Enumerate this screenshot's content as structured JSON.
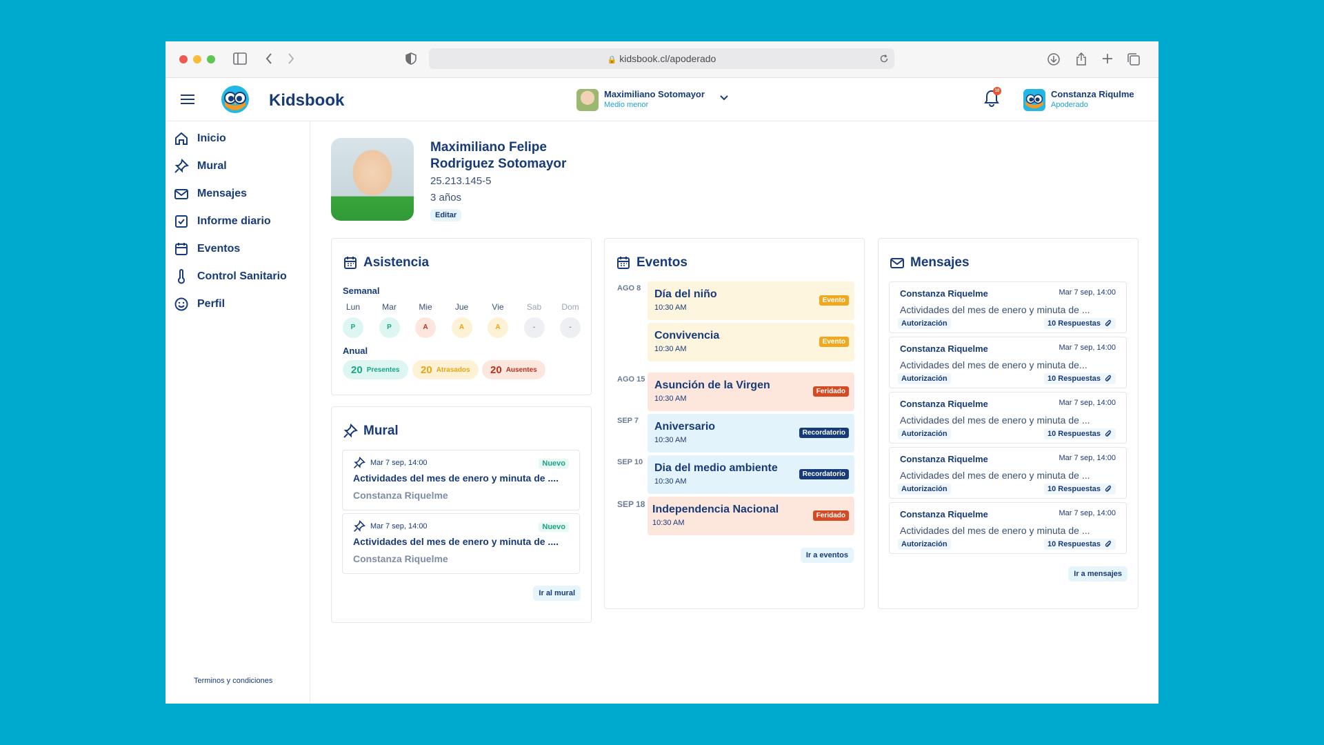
{
  "browser": {
    "url": "kidsbook.cl/apoderado"
  },
  "app": {
    "name": "Kidsbook"
  },
  "student_selector": {
    "name": "Maximiliano Sotomayor",
    "level": "Medio menor"
  },
  "notifications": {
    "count": "10"
  },
  "user": {
    "name": "Constanza Riqulme",
    "role": "Apoderado"
  },
  "nav": [
    "Inicio",
    "Mural",
    "Mensajes",
    "Informe diario",
    "Eventos",
    "Control Sanitario",
    "Perfil"
  ],
  "footer": {
    "terms": "Terminos y condiciones"
  },
  "profile": {
    "name_line1": "Maximiliano Felipe",
    "name_line2": "Rodriguez Sotomayor",
    "rut": "25.213.145-5",
    "age": "3 años",
    "edit": "Editar"
  },
  "attendance": {
    "title": "Asistencia",
    "weekly_label": "Semanal",
    "days": [
      {
        "d": "Lun",
        "v": "P"
      },
      {
        "d": "Mar",
        "v": "P"
      },
      {
        "d": "Mie",
        "v": "A"
      },
      {
        "d": "Jue",
        "v": "A"
      },
      {
        "d": "Vie",
        "v": "A"
      },
      {
        "d": "Sab",
        "v": "-"
      },
      {
        "d": "Dom",
        "v": "-"
      }
    ],
    "annual_label": "Anual",
    "annual": [
      {
        "n": "20",
        "l": "Presentes"
      },
      {
        "n": "20",
        "l": "Atrasados"
      },
      {
        "n": "20",
        "l": "Ausentes"
      }
    ]
  },
  "mural": {
    "title": "Mural",
    "posts": [
      {
        "date": "Mar 7 sep, 14:00",
        "badge": "Nuevo",
        "text": "Actividades del mes de enero y minuta de ....",
        "author": "Constanza Riquelme"
      },
      {
        "date": "Mar 7 sep, 14:00",
        "badge": "Nuevo",
        "text": "Actividades del mes de enero y minuta de ....",
        "author": "Constanza Riquelme"
      }
    ],
    "link": "Ir al mural"
  },
  "events": {
    "title": "Eventos",
    "dates": [
      "AGO 8",
      "AGO 15",
      "SEP 7",
      "SEP 10",
      "SEP 18"
    ],
    "items": [
      {
        "name": "Día del niño",
        "time": "10:30 AM",
        "tag": "Evento"
      },
      {
        "name": "Convivencia",
        "time": "10:30 AM",
        "tag": "Evento"
      },
      {
        "name": "Asunción de la Virgen",
        "time": "10:30 AM",
        "tag": "Feridado"
      },
      {
        "name": "Aniversario",
        "time": "10:30 AM",
        "tag": "Recordatorio"
      },
      {
        "name": "Dia del medio ambiente",
        "time": "10:30 AM",
        "tag": "Recordatorio"
      },
      {
        "name": "Independencia Nacional",
        "time": "10:30 AM",
        "tag": "Feridado"
      }
    ],
    "link": "Ir a eventos"
  },
  "messages": {
    "title": "Mensajes",
    "items": [
      {
        "author": "Constanza Riquelme",
        "date": "Mar 7 sep, 14:00",
        "preview": "Actividades del mes de enero y minuta de ...",
        "tag": "Autorización",
        "replies": "10 Respuestas"
      },
      {
        "author": "Constanza Riquelme",
        "date": "Mar 7 sep, 14:00",
        "preview": "Actividades del mes de enero y minuta de...",
        "tag": "Autorización",
        "replies": "10 Respuestas"
      },
      {
        "author": "Constanza Riquelme",
        "date": "Mar 7 sep, 14:00",
        "preview": "Actividades del mes de enero y minuta de ...",
        "tag": "Autorización",
        "replies": "10 Respuestas"
      },
      {
        "author": "Constanza Riquelme",
        "date": "Mar 7 sep, 14:00",
        "preview": "Actividades del mes de enero y minuta de ...",
        "tag": "Autorización",
        "replies": "10 Respuestas"
      },
      {
        "author": "Constanza Riquelme",
        "date": "Mar 7 sep, 14:00",
        "preview": "Actividades del mes de enero y minuta de ...",
        "tag": "Autorización",
        "replies": "10 Respuestas"
      }
    ],
    "link": "Ir a mensajes"
  }
}
